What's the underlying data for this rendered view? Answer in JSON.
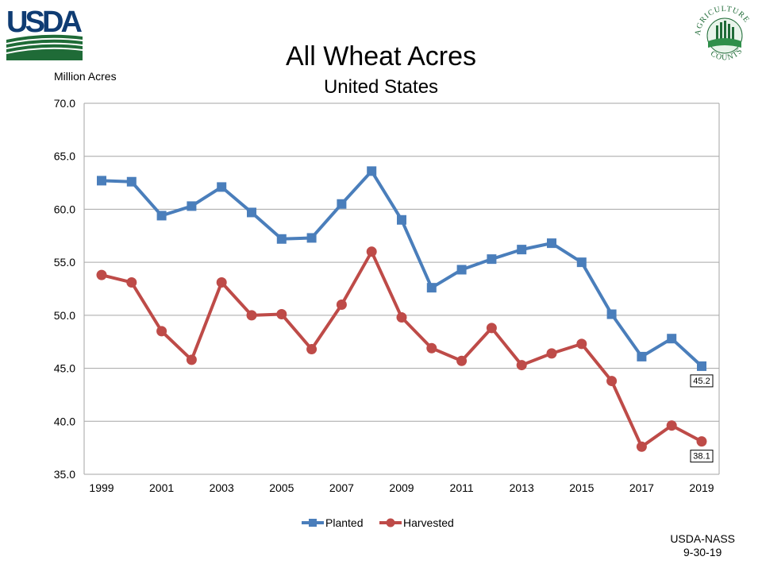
{
  "logos": {
    "usda_text": "USDA",
    "ag_top": "AGRICULTURE",
    "ag_bottom": "COUNTS"
  },
  "colors": {
    "planted": "#4a7ebb",
    "harvested": "#be4b48",
    "grid": "#a6a6a6",
    "usda_blue": "#0f3c73",
    "usda_green": "#1f6b37"
  },
  "source": {
    "line1": "USDA-NASS",
    "line2": "9-30-19"
  },
  "chart_data": {
    "type": "line",
    "title": "All Wheat Acres",
    "subtitle": "United States",
    "ylabel": "Million Acres",
    "ylim": [
      35,
      70
    ],
    "yticks": [
      "35.0",
      "40.0",
      "45.0",
      "50.0",
      "55.0",
      "60.0",
      "65.0",
      "70.0"
    ],
    "x": [
      1999,
      2000,
      2001,
      2002,
      2003,
      2004,
      2005,
      2006,
      2007,
      2008,
      2009,
      2010,
      2011,
      2012,
      2013,
      2014,
      2015,
      2016,
      2017,
      2018,
      2019
    ],
    "xticks": [
      "1999",
      "2001",
      "2003",
      "2005",
      "2007",
      "2009",
      "2011",
      "2013",
      "2015",
      "2017",
      "2019"
    ],
    "grid": "horizontal",
    "legend": "bottom",
    "series": [
      {
        "name": "Planted",
        "marker": "square",
        "values": [
          62.7,
          62.6,
          59.4,
          60.3,
          62.1,
          59.7,
          57.2,
          57.3,
          60.5,
          63.6,
          59.0,
          52.6,
          54.3,
          55.3,
          56.2,
          56.8,
          55.0,
          50.1,
          46.1,
          47.8,
          45.2
        ]
      },
      {
        "name": "Harvested",
        "marker": "circle",
        "values": [
          53.8,
          53.1,
          48.5,
          45.8,
          53.1,
          50.0,
          50.1,
          46.8,
          51.0,
          56.0,
          49.8,
          46.9,
          45.7,
          48.8,
          45.3,
          46.4,
          47.3,
          43.8,
          37.6,
          39.6,
          38.1
        ]
      }
    ],
    "annotations": [
      "45.2",
      "38.1"
    ]
  }
}
